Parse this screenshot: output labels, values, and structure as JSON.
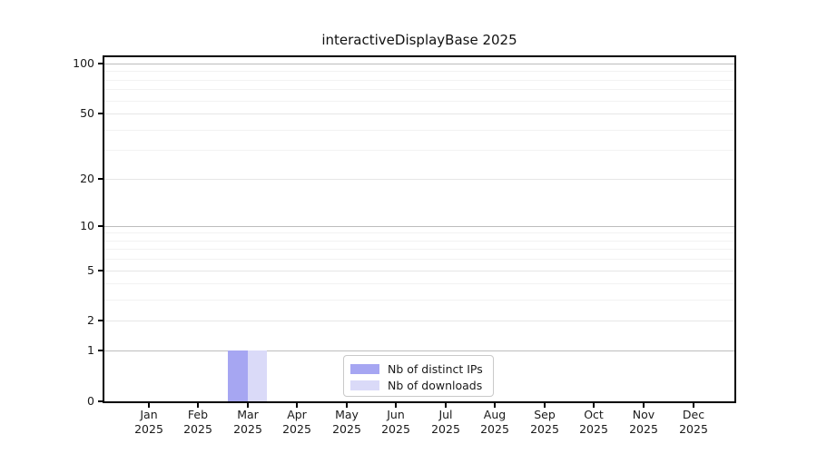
{
  "chart_data": {
    "type": "bar",
    "title": "interactiveDisplayBase 2025",
    "categories": [
      "Jan",
      "Feb",
      "Mar",
      "Apr",
      "May",
      "Jun",
      "Jul",
      "Aug",
      "Sep",
      "Oct",
      "Nov",
      "Dec"
    ],
    "year_label": "2025",
    "series": [
      {
        "name": "Nb of distinct IPs",
        "color": "#a6a6f2",
        "values": [
          0,
          0,
          1,
          0,
          0,
          0,
          0,
          0,
          0,
          0,
          0,
          0
        ]
      },
      {
        "name": "Nb of downloads",
        "color": "#dadaf8",
        "values": [
          0,
          0,
          1,
          0,
          0,
          0,
          0,
          0,
          0,
          0,
          0,
          0
        ]
      }
    ],
    "y_scale": "log1p",
    "ylim": [
      0,
      100
    ],
    "y_ticks_labeled": [
      0,
      1,
      2,
      5,
      10,
      20,
      50,
      100
    ],
    "y_gridlines_major": [
      1,
      10,
      100
    ],
    "y_gridlines_mid": [
      2,
      5,
      20,
      50
    ],
    "y_gridlines_minor": [
      3,
      4,
      6,
      7,
      8,
      9,
      30,
      40,
      60,
      70,
      80,
      90
    ],
    "grid": "on",
    "legend_position": "lower center inside plot",
    "colors": {
      "axis": "#000000",
      "grid_major": "#bdbdbd",
      "grid_minor": "#f2f2f2",
      "text": "#1a1a1a"
    }
  }
}
